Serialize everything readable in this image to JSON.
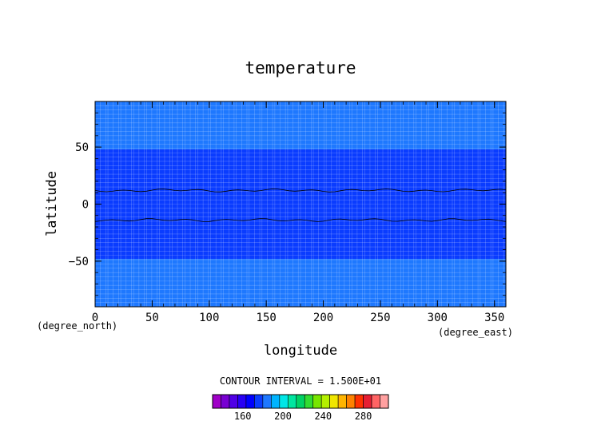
{
  "chart_data": {
    "type": "heatmap",
    "title": "temperature",
    "xlabel": "longitude",
    "ylabel": "latitude",
    "x_unit": "(degree_east)",
    "y_unit": "(degree_north)",
    "xlim": [
      0,
      360
    ],
    "ylim": [
      -90,
      90
    ],
    "x_ticks": [
      0,
      50,
      100,
      150,
      200,
      250,
      300,
      350
    ],
    "y_ticks": [
      -50,
      0,
      50
    ],
    "contour_interval_text": "CONTOUR INTERVAL = 1.500E+01",
    "contour_interval": 15,
    "bands": [
      {
        "lat_min": -90,
        "lat_max": -48,
        "level": 210,
        "color": "#1e78ff"
      },
      {
        "lat_min": -48,
        "lat_max": 48,
        "level": 195,
        "color": "#0a3cff"
      },
      {
        "lat_min": 48,
        "lat_max": 90,
        "level": 210,
        "color": "#1e78ff"
      }
    ],
    "contour_lines": [
      {
        "lat": 12,
        "level": 180
      },
      {
        "lat": -14,
        "level": 180
      }
    ],
    "colorbar": {
      "ticks": [
        160,
        200,
        240,
        280
      ],
      "range": [
        130,
        305
      ],
      "colors": [
        "#a000c8",
        "#7800d2",
        "#5000e6",
        "#2800f5",
        "#0000ff",
        "#0a3cff",
        "#1e78ff",
        "#00b4ff",
        "#00e6e6",
        "#00e6a0",
        "#00d264",
        "#32dc32",
        "#78e600",
        "#b4f000",
        "#f0e600",
        "#ffb400",
        "#ff8200",
        "#ff3200",
        "#e61e32",
        "#ff6464",
        "#ffa0a0"
      ]
    }
  }
}
